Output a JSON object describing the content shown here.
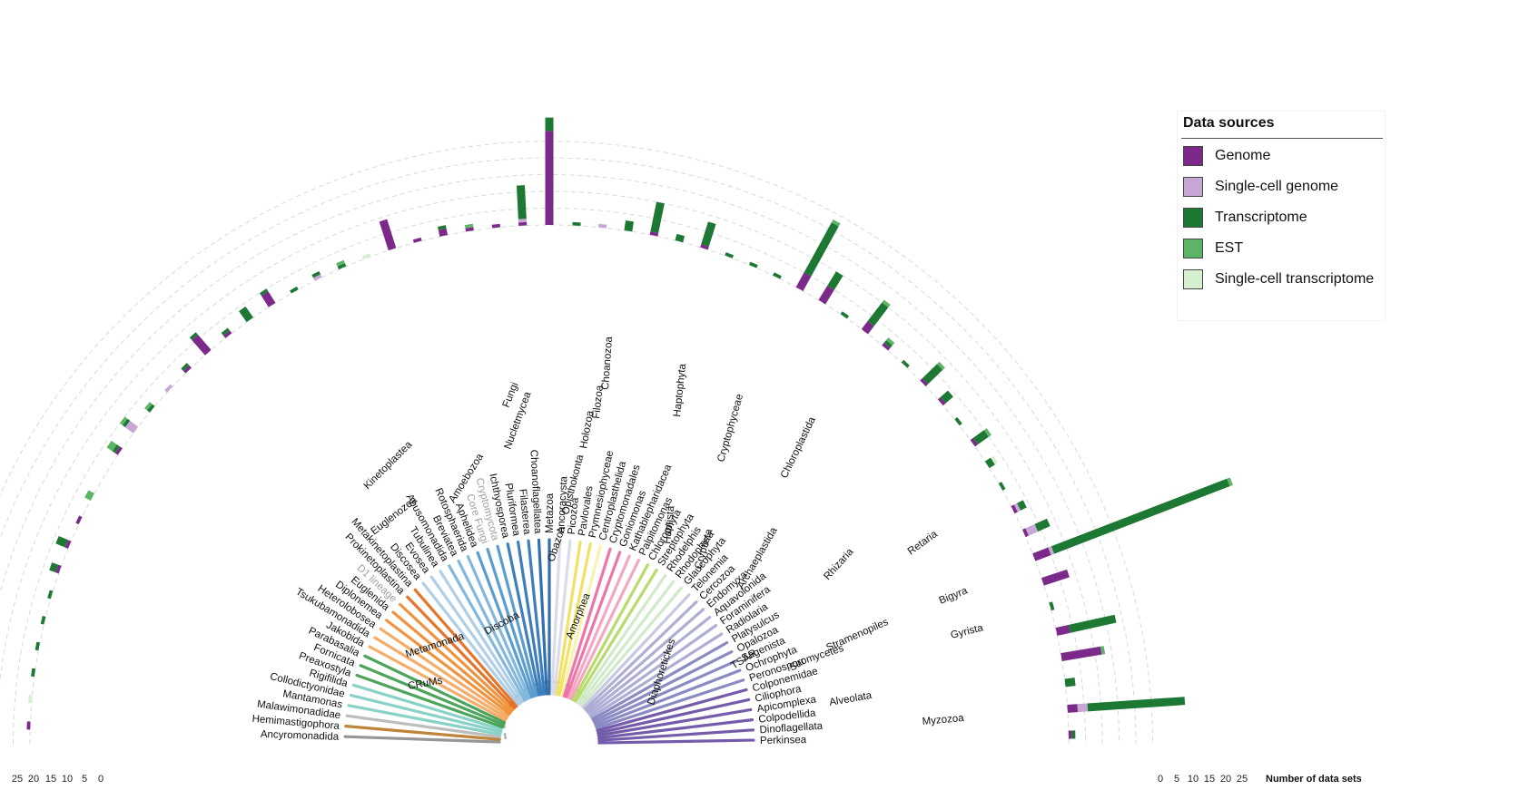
{
  "colors": {
    "genome": "#7b2a8a",
    "single_cell_genome": "#c6a7d6",
    "transcriptome": "#1d7834",
    "est": "#5eb466",
    "single_cell_transcriptome": "#d6efd0"
  },
  "legend": {
    "title": "Data sources",
    "items": [
      {
        "label": "Genome",
        "color": "#7b2a8a"
      },
      {
        "label": "Single-cell genome",
        "color": "#c6a7d6"
      },
      {
        "label": "Transcriptome",
        "color": "#1d7834"
      },
      {
        "label": "EST",
        "color": "#5eb466"
      },
      {
        "label": "Single-cell transcriptome",
        "color": "#d6efd0"
      }
    ]
  },
  "axes": {
    "left_ticks": [
      "25",
      "20",
      "15",
      "10",
      "5",
      "0"
    ],
    "right_ticks": [
      "0",
      "5",
      "10",
      "15",
      "20",
      "25"
    ],
    "right_title": "Number of data sets"
  },
  "clade_labels": {
    "amorphea": "Amorphea",
    "obazoa": "Obazoa",
    "opisthokonta": "Opisthokonta",
    "holozoa": "Holozoa",
    "filozoa": "Filozoa",
    "choanozoa": "Choanozoa",
    "nucletmycea": "Nucletmycea",
    "fungi": "Fungi",
    "amoebozoa": "Amoebozoa",
    "discoba": "Discoba",
    "euglenozoa": "Euglenozoa",
    "kinetoplastea": "Kinetoplastea",
    "metamonada": "Metamonada",
    "crums": "CRuMs",
    "diaphoretickes": "Diaphoretickes",
    "haptista": "Haptista",
    "haptophyta": "Haptophyta",
    "cryptista": "Cryptista",
    "cryptophyceae": "Cryptophyceae",
    "archaeplastida": "Archaeplastida",
    "chloroplastida": "Chloroplastida",
    "tsar": "TSAR",
    "sar": "Sar",
    "rhizaria": "Rhizaria",
    "retaria": "Retaria",
    "stramenopiles": "Stramenopiles",
    "bigyra": "Bigyra",
    "gyrista": "Gyrista",
    "alveolata": "Alveolata",
    "myzozoa": "Myzozoa"
  },
  "taxa": [
    {
      "name": "Ancyromonadida",
      "gray": false,
      "color": "#8e8e8e",
      "bars": [
        1,
        0,
        0,
        0,
        0
      ],
      "side": "left"
    },
    {
      "name": "Hemimastigophora",
      "gray": false,
      "color": "#b87a2a",
      "bars": [
        0,
        0,
        0,
        0,
        1
      ],
      "side": "left"
    },
    {
      "name": "Malawimonadidae",
      "gray": false,
      "color": "#b8b8b8",
      "bars": [
        0,
        0,
        1,
        0,
        0
      ],
      "side": "left"
    },
    {
      "name": "Mantamonas",
      "gray": false,
      "color": "#7fcfc4",
      "bars": [
        0,
        0,
        1,
        0,
        0
      ],
      "side": "left"
    },
    {
      "name": "Collodictyonidae",
      "gray": false,
      "color": "#7fcfc4",
      "bars": [
        0,
        0,
        1,
        0,
        0
      ],
      "side": "left"
    },
    {
      "name": "Rigifilida",
      "gray": false,
      "color": "#7fcfc4",
      "bars": [
        0,
        0,
        1,
        0,
        0
      ],
      "side": "left"
    },
    {
      "name": "Preaxostyla",
      "gray": false,
      "color": "#3e9e4e",
      "bars": [
        1,
        0,
        2,
        0,
        0
      ],
      "side": "left"
    },
    {
      "name": "Fornicata",
      "gray": false,
      "color": "#3e9e4e",
      "bars": [
        1,
        0,
        3,
        0,
        0
      ],
      "side": "left"
    },
    {
      "name": "Parabasalia",
      "gray": false,
      "color": "#3e9e4e",
      "bars": [
        1,
        0,
        0,
        0,
        0
      ],
      "side": "left"
    },
    {
      "name": "Jakobida",
      "gray": false,
      "color": "#f4a65c",
      "bars": [
        0,
        0,
        0,
        2,
        0
      ],
      "side": "left"
    },
    {
      "name": "Tsukubamonadida",
      "gray": false,
      "color": "#f4a65c",
      "bars": [
        0,
        0,
        0,
        0,
        0
      ],
      "side": "left"
    },
    {
      "name": "Heterolobosea",
      "gray": false,
      "color": "#f4a65c",
      "bars": [
        1,
        0,
        1,
        2,
        0
      ],
      "side": "left"
    },
    {
      "name": "Diplonemea",
      "gray": false,
      "color": "#ef8a2e",
      "bars": [
        0,
        3,
        1,
        1,
        0
      ],
      "side": "left"
    },
    {
      "name": "Euglenida",
      "gray": false,
      "color": "#ef8a2e",
      "bars": [
        0,
        0,
        1,
        1,
        0
      ],
      "side": "left"
    },
    {
      "name": "D1 lineage",
      "gray": true,
      "color": "#ef8a2e",
      "bars": [
        0,
        1,
        0,
        0,
        0
      ],
      "side": "left"
    },
    {
      "name": "Prokinetoplastina",
      "gray": false,
      "color": "#e46a1a",
      "bars": [
        1,
        0,
        1,
        0,
        0
      ],
      "side": "left"
    },
    {
      "name": "Metakinetoplastina",
      "gray": false,
      "color": "#e46a1a",
      "bars": [
        6,
        0,
        1,
        0,
        0
      ],
      "side": "left"
    },
    {
      "name": "Discosea",
      "gray": false,
      "color": "#a8cbe6",
      "bars": [
        1,
        0,
        1,
        0,
        0
      ],
      "side": "left"
    },
    {
      "name": "Evosea",
      "gray": false,
      "color": "#a8cbe6",
      "bars": [
        0,
        0,
        4,
        0,
        0
      ],
      "side": "left"
    },
    {
      "name": "Tubulinea",
      "gray": false,
      "color": "#a8cbe6",
      "bars": [
        4,
        0,
        1,
        0,
        0
      ],
      "side": "left"
    },
    {
      "name": "Apusomonadida",
      "gray": false,
      "color": "#79b2dc",
      "bars": [
        0,
        0,
        1,
        0,
        0
      ],
      "side": "left"
    },
    {
      "name": "Breviatea",
      "gray": false,
      "color": "#79b2dc",
      "bars": [
        0,
        1,
        1,
        0,
        0
      ],
      "side": "left"
    },
    {
      "name": "Rotosphaerida",
      "gray": false,
      "color": "#79b2dc",
      "bars": [
        0,
        0,
        1,
        1,
        0
      ],
      "side": "left"
    },
    {
      "name": "Aphelidea",
      "gray": false,
      "color": "#4f95cc",
      "bars": [
        0,
        0,
        0,
        0,
        1
      ],
      "side": "left"
    },
    {
      "name": "Core Fungi",
      "gray": true,
      "color": "#4f95cc",
      "bars": [
        9,
        0,
        0,
        0,
        0
      ],
      "side": "left"
    },
    {
      "name": "Cryptomycota",
      "gray": true,
      "color": "#4f95cc",
      "bars": [
        1,
        0,
        0,
        0,
        0
      ],
      "side": "left"
    },
    {
      "name": "Ichthyosporea",
      "gray": false,
      "color": "#2f74b7",
      "bars": [
        2,
        0,
        1,
        0,
        0
      ],
      "side": "left"
    },
    {
      "name": "Pluriformea",
      "gray": false,
      "color": "#2f74b7",
      "bars": [
        1,
        0,
        0,
        1,
        0
      ],
      "side": "left"
    },
    {
      "name": "Filasterea",
      "gray": false,
      "color": "#2f74b7",
      "bars": [
        1,
        0,
        0,
        0,
        0
      ],
      "side": "left"
    },
    {
      "name": "Choanoflagellatea",
      "gray": false,
      "color": "#2464a8",
      "bars": [
        1,
        1,
        10,
        0,
        0
      ],
      "side": "left"
    },
    {
      "name": "Metazoa",
      "gray": false,
      "color": "#2464a8",
      "bars": [
        28,
        0,
        4,
        0,
        0
      ],
      "side": "left"
    },
    {
      "name": "Ancoracysta",
      "gray": false,
      "color": "#d8d8e8",
      "bars": [
        0,
        0,
        1,
        0,
        0
      ],
      "side": "right"
    },
    {
      "name": "Picozoa",
      "gray": false,
      "color": "#d8d8e8",
      "bars": [
        0,
        1,
        0,
        0,
        0
      ],
      "side": "right"
    },
    {
      "name": "Pavlovales",
      "gray": false,
      "color": "#f0e05a",
      "bars": [
        0,
        0,
        3,
        0,
        0
      ],
      "side": "right"
    },
    {
      "name": "Prymnesiophyceae",
      "gray": false,
      "color": "#f0e05a",
      "bars": [
        1,
        0,
        9,
        0,
        0
      ],
      "side": "right"
    },
    {
      "name": "Centroplasthelida",
      "gray": false,
      "color": "#f8f2a8",
      "bars": [
        0,
        0,
        2,
        0,
        0
      ],
      "side": "right"
    },
    {
      "name": "Cryptomonadales",
      "gray": false,
      "color": "#ee6aa0",
      "bars": [
        1,
        0,
        7,
        0,
        0
      ],
      "side": "right"
    },
    {
      "name": "Goniomonas",
      "gray": false,
      "color": "#ee6aa0",
      "bars": [
        0,
        0,
        1,
        0,
        0
      ],
      "side": "right"
    },
    {
      "name": "Kathablepharidacea",
      "gray": false,
      "color": "#f5a0bd",
      "bars": [
        0,
        0,
        1,
        0,
        0
      ],
      "side": "right"
    },
    {
      "name": "Palpitomonas",
      "gray": false,
      "color": "#f5a0bd",
      "bars": [
        0,
        0,
        1,
        0,
        0
      ],
      "side": "right"
    },
    {
      "name": "Chlorophyta",
      "gray": false,
      "color": "#b1d860",
      "bars": [
        5,
        0,
        17,
        1,
        0
      ],
      "side": "right"
    },
    {
      "name": "Streptophyta",
      "gray": false,
      "color": "#b1d860",
      "bars": [
        5,
        0,
        5,
        0,
        0
      ],
      "side": "right"
    },
    {
      "name": "Rhodelphis",
      "gray": false,
      "color": "#cde9c6",
      "bars": [
        0,
        0,
        1,
        0,
        0
      ],
      "side": "right"
    },
    {
      "name": "Rhodophyta",
      "gray": false,
      "color": "#cde9c6",
      "bars": [
        3,
        0,
        7,
        1,
        0
      ],
      "side": "right"
    },
    {
      "name": "Glaucophyta",
      "gray": false,
      "color": "#cde9c6",
      "bars": [
        1,
        0,
        1,
        1,
        0
      ],
      "side": "right"
    },
    {
      "name": "Telonemia",
      "gray": false,
      "color": "#c4c4e0",
      "bars": [
        0,
        0,
        1,
        0,
        0
      ],
      "side": "right"
    },
    {
      "name": "Cercozoa",
      "gray": false,
      "color": "#a8a8d2",
      "bars": [
        1,
        0,
        6,
        1,
        0
      ],
      "side": "right"
    },
    {
      "name": "Endomyxa",
      "gray": false,
      "color": "#a8a8d2",
      "bars": [
        1,
        0,
        3,
        0,
        0
      ],
      "side": "right"
    },
    {
      "name": "Aquavolonida",
      "gray": false,
      "color": "#a8a8d2",
      "bars": [
        0,
        0,
        1,
        0,
        0
      ],
      "side": "right"
    },
    {
      "name": "Foraminifera",
      "gray": false,
      "color": "#a8a8d2",
      "bars": [
        1,
        0,
        4,
        1,
        0
      ],
      "side": "right"
    },
    {
      "name": "Radiolaria",
      "gray": false,
      "color": "#a8a8d2",
      "bars": [
        0,
        0,
        2,
        0,
        1
      ],
      "side": "right"
    },
    {
      "name": "Platysulcus",
      "gray": false,
      "color": "#8282bf",
      "bars": [
        0,
        0,
        1,
        0,
        0
      ],
      "side": "right"
    },
    {
      "name": "Opalozoa",
      "gray": false,
      "color": "#8282bf",
      "bars": [
        1,
        1,
        2,
        0,
        0
      ],
      "side": "right"
    },
    {
      "name": "Sagenista",
      "gray": false,
      "color": "#8282bf",
      "bars": [
        1,
        3,
        4,
        0,
        0
      ],
      "side": "right"
    },
    {
      "name": "Ochrophyta",
      "gray": false,
      "color": "#8282bf",
      "bars": [
        5,
        1,
        56,
        1,
        0
      ],
      "side": "right"
    },
    {
      "name": "Peronosporomycetes",
      "gray": false,
      "color": "#8282bf",
      "bars": [
        8,
        0,
        0,
        0,
        0
      ],
      "side": "right"
    },
    {
      "name": "Colponemidae",
      "gray": false,
      "color": "#6a4fa4",
      "bars": [
        0,
        0,
        1,
        0,
        0
      ],
      "side": "right"
    },
    {
      "name": "Ciliophora",
      "gray": false,
      "color": "#6a4fa4",
      "bars": [
        4,
        0,
        14,
        0,
        0
      ],
      "side": "right"
    },
    {
      "name": "Apicomplexa",
      "gray": false,
      "color": "#6a4fa4",
      "bars": [
        12,
        0,
        0,
        1,
        0
      ],
      "side": "right"
    },
    {
      "name": "Colpodellida",
      "gray": false,
      "color": "#6a4fa4",
      "bars": [
        0,
        0,
        3,
        0,
        0
      ],
      "side": "right"
    },
    {
      "name": "Dinoflagellata",
      "gray": false,
      "color": "#6a4fa4",
      "bars": [
        3,
        3,
        29,
        0,
        0
      ],
      "side": "right"
    },
    {
      "name": "Perkinsea",
      "gray": false,
      "color": "#6a4fa4",
      "bars": [
        1,
        0,
        1,
        0,
        0
      ],
      "side": "right"
    }
  ]
}
